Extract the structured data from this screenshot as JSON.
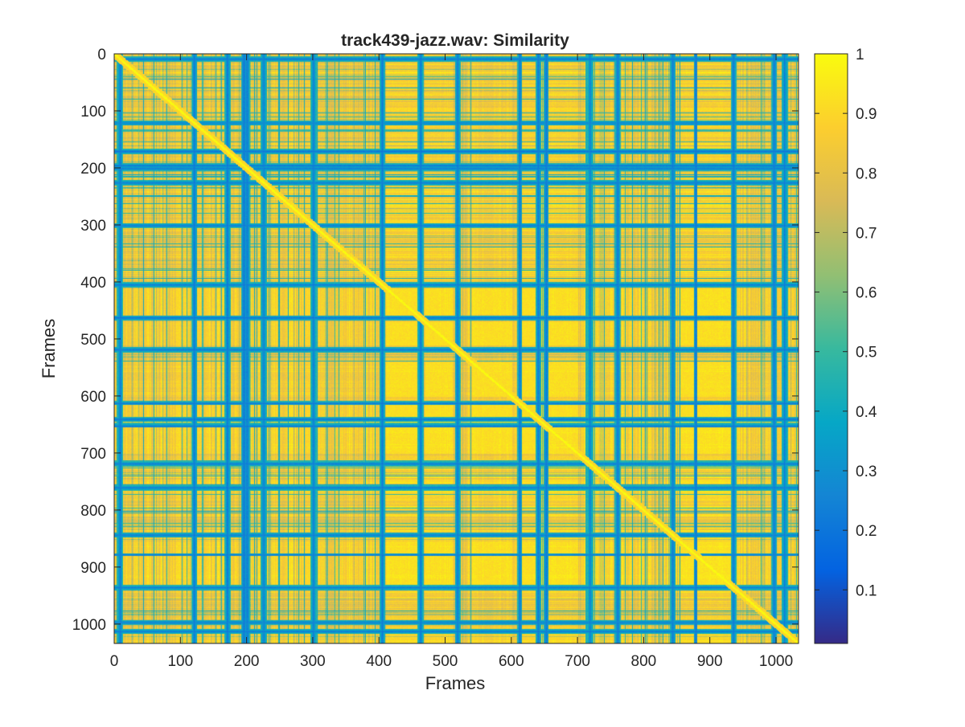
{
  "chart_data": {
    "type": "heatmap",
    "title": "track439-jazz.wav: Similarity",
    "xlabel": "Frames",
    "ylabel": "Frames",
    "n_frames": 1034,
    "xlim": [
      0,
      1034
    ],
    "ylim": [
      0,
      1034
    ],
    "y_direction": "reversed",
    "x_ticks": [
      0,
      100,
      200,
      300,
      400,
      500,
      600,
      700,
      800,
      900,
      1000
    ],
    "y_ticks": [
      0,
      100,
      200,
      300,
      400,
      500,
      600,
      700,
      800,
      900,
      1000
    ],
    "colorbar": {
      "range": [
        0.01,
        1
      ],
      "ticks": [
        0.1,
        0.2,
        0.3,
        0.4,
        0.5,
        0.6,
        0.7,
        0.8,
        0.9,
        1
      ],
      "tick_labels": [
        "0.1",
        "0.2",
        "0.3",
        "0.4",
        "0.5",
        "0.6",
        "0.7",
        "0.8",
        "0.9",
        "1"
      ],
      "colormap": "parula"
    },
    "diagonal_value": 1,
    "low_similarity_frames": [
      8,
      120,
      170,
      195,
      200,
      225,
      300,
      404,
      462,
      518,
      612,
      640,
      652,
      718,
      760,
      843,
      878,
      935,
      996,
      1012
    ],
    "high_similarity_blocks": [
      {
        "frames": [
          410,
          455
        ],
        "value": 0.97
      },
      {
        "frames": [
          470,
          510
        ],
        "value": 0.95
      },
      {
        "frames": [
          615,
          635
        ],
        "value": 0.96
      },
      {
        "frames": [
          655,
          700
        ],
        "value": 0.97
      },
      {
        "frames": [
          855,
          875
        ],
        "value": 0.97
      },
      {
        "frames": [
          880,
          930
        ],
        "value": 0.98
      },
      {
        "frames": [
          540,
          600
        ],
        "value": 0.9
      }
    ],
    "grid": false,
    "legend": "none"
  },
  "colors": {
    "background": "#ffffff",
    "axes": "#262626",
    "parula_stops": [
      "#352a87",
      "#0363e1",
      "#1485d4",
      "#06a7c6",
      "#38b99e",
      "#92bf73",
      "#d9ba56",
      "#fcce2e",
      "#f9fb0e"
    ]
  }
}
